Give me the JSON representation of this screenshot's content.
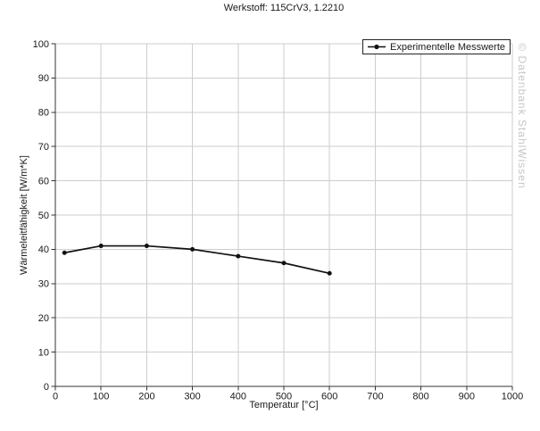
{
  "page": {
    "watermark": "© Datenbank StahlWissen"
  },
  "chart_data": {
    "type": "line",
    "title": "Werkstoff: 115CrV3, 1.2210",
    "xlabel": "Temperatur [°C]",
    "ylabel": "Wärmeleitfähigkeit [W/m*K]",
    "xlim": [
      0,
      1000
    ],
    "ylim": [
      0,
      100
    ],
    "x_ticks": [
      0,
      100,
      200,
      300,
      400,
      500,
      600,
      700,
      800,
      900,
      1000
    ],
    "y_ticks": [
      0,
      10,
      20,
      30,
      40,
      50,
      60,
      70,
      80,
      90,
      100
    ],
    "grid": true,
    "legend_position": "top-right",
    "series": [
      {
        "name": "Experimentelle Messwerte",
        "x": [
          20,
          100,
          200,
          300,
          400,
          500,
          600
        ],
        "y": [
          39,
          41,
          41,
          40,
          38,
          36,
          33
        ],
        "color": "#111111",
        "marker": "circle",
        "line_width": 1.7
      }
    ]
  },
  "colors": {
    "background": "#ffffff",
    "grid": "#cdcdcd",
    "axis": "#333333",
    "tick_text": "#1a1a1a",
    "watermark": "#c6c6c6",
    "legend_border": "#222222"
  }
}
